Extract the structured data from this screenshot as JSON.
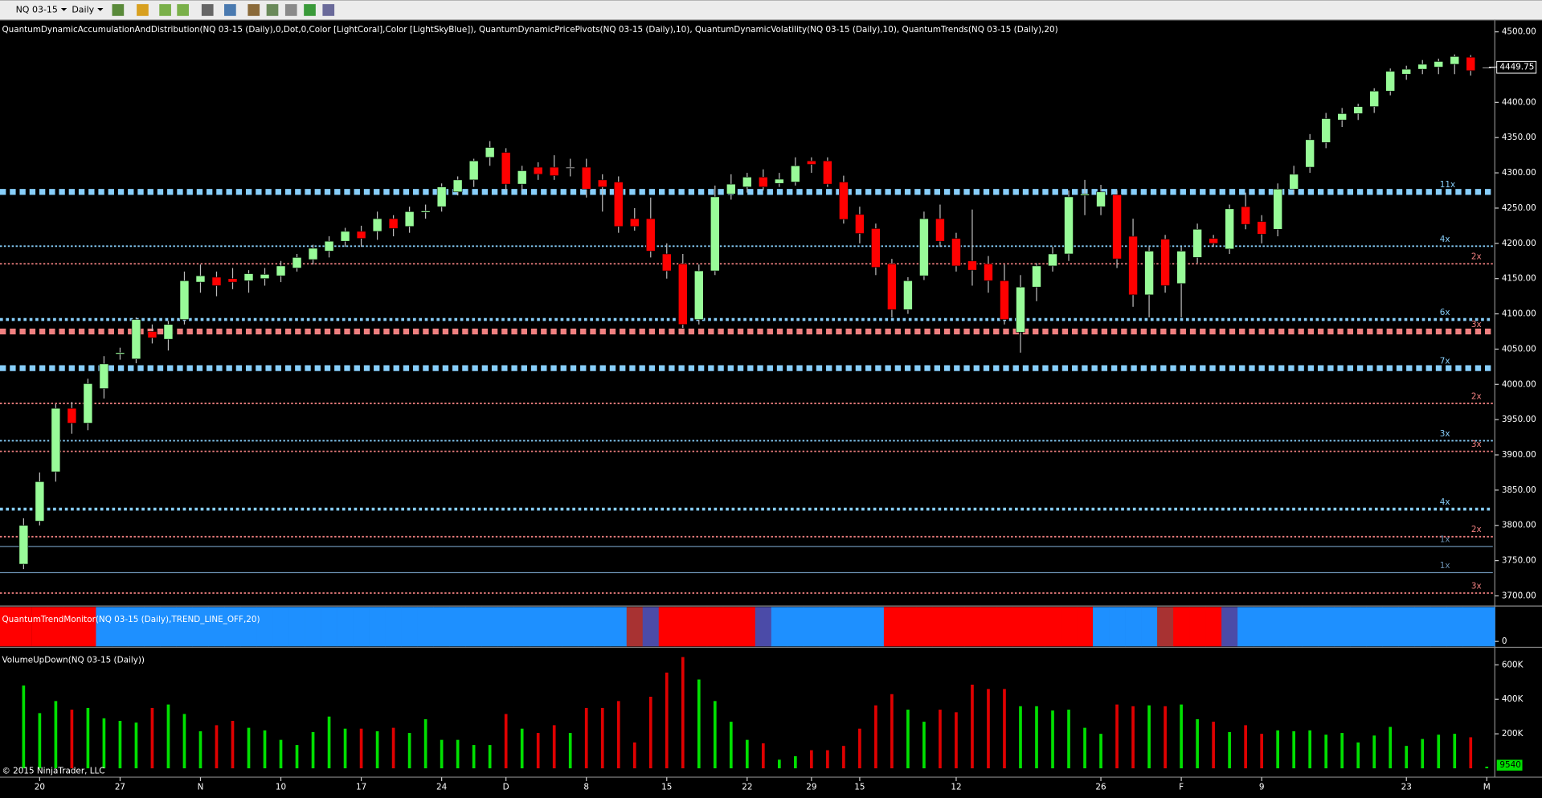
{
  "chart_data": {
    "type": "candlestick",
    "instrument": "NQ 03-15",
    "period": "Daily",
    "indicators_caption": "QuantumDynamicAccumulationAndDistribution(NQ 03-15 (Daily),0,Dot,0,Color [LightCoral],Color [LightSkyBlue]), QuantumDynamicPricePivots(NQ 03-15 (Daily),10), QuantumDynamicVolatility(NQ 03-15 (Daily),10), QuantumTrends(NQ 03-15 (Daily),20)",
    "trend_panel_title": "QuantumTrendMonitor(NQ 03-15 (Daily),TREND_LINE_OFF,20)",
    "volume_panel_title": "VolumeUpDown(NQ 03-15 (Daily))",
    "copyright": "© 2015 NinjaTrader, LLC",
    "categories": [
      null,
      "20",
      null,
      null,
      null,
      null,
      "27",
      null,
      null,
      null,
      null,
      "N",
      null,
      null,
      null,
      null,
      "10",
      null,
      null,
      null,
      null,
      "17",
      null,
      null,
      null,
      null,
      "24",
      null,
      null,
      null,
      "D",
      null,
      null,
      null,
      null,
      "8",
      null,
      null,
      null,
      null,
      "15",
      null,
      null,
      null,
      null,
      "22",
      null,
      null,
      null,
      "29",
      null,
      null,
      "15",
      null,
      null,
      null,
      null,
      null,
      "12",
      null,
      null,
      null,
      null,
      null,
      null,
      null,
      null,
      "26",
      null,
      null,
      null,
      null,
      "F",
      null,
      null,
      null,
      null,
      "9",
      null,
      null,
      null,
      null,
      null,
      null,
      null,
      null,
      "23",
      null,
      null,
      null,
      null,
      "M"
    ],
    "open": [
      3745,
      3806,
      3876,
      3966,
      3945,
      3994,
      4043,
      4036,
      4075,
      4064,
      4092,
      4145,
      4152,
      4150,
      4147,
      4150,
      4154,
      4165,
      4177,
      4189,
      4203,
      4217,
      4217,
      4235,
      4224,
      4244,
      4252,
      4273,
      4290,
      4322,
      4329,
      4284,
      4308,
      4308,
      4308,
      4308,
      4290,
      4287,
      4235,
      4235,
      4185,
      4171,
      4092,
      4161,
      4270,
      4280,
      4294,
      4285,
      4287,
      4317,
      4317,
      4287,
      4241,
      4221,
      4171,
      4106,
      4154,
      4235,
      4207,
      4175,
      4171,
      4147,
      4074,
      4138,
      4168,
      4185,
      4268,
      4252,
      4269,
      4210,
      4127,
      4206,
      4143,
      4180,
      4207,
      4192,
      4252,
      4231,
      4220,
      4277,
      4308,
      4343,
      4375,
      4384,
      4394,
      4416,
      4440,
      4447,
      4450,
      4454,
      4464,
      4449.75
    ],
    "high": [
      3810,
      3875,
      3972,
      3975,
      4008,
      4040,
      4052,
      4095,
      4085,
      4090,
      4160,
      4170,
      4160,
      4165,
      4162,
      4165,
      4175,
      4185,
      4198,
      4210,
      4222,
      4225,
      4245,
      4240,
      4252,
      4255,
      4285,
      4295,
      4320,
      4345,
      4335,
      4310,
      4315,
      4325,
      4320,
      4320,
      4298,
      4295,
      4250,
      4265,
      4200,
      4185,
      4170,
      4282,
      4298,
      4300,
      4305,
      4300,
      4322,
      4322,
      4322,
      4296,
      4252,
      4228,
      4178,
      4152,
      4245,
      4255,
      4215,
      4248,
      4182,
      4170,
      4155,
      4172,
      4195,
      4275,
      4290,
      4283,
      4275,
      4235,
      4195,
      4212,
      4195,
      4228,
      4212,
      4255,
      4272,
      4240,
      4285,
      4310,
      4355,
      4385,
      4392,
      4398,
      4420,
      4448,
      4452,
      4460,
      4462,
      4468,
      4467,
      4449.75
    ],
    "low": [
      3738,
      3800,
      3862,
      3930,
      3935,
      3980,
      4035,
      4030,
      4058,
      4048,
      4085,
      4130,
      4125,
      4135,
      4130,
      4140,
      4145,
      4160,
      4170,
      4180,
      4195,
      4195,
      4205,
      4210,
      4215,
      4235,
      4245,
      4268,
      4280,
      4310,
      4275,
      4275,
      4290,
      4290,
      4295,
      4265,
      4245,
      4215,
      4218,
      4180,
      4150,
      4080,
      4085,
      4155,
      4262,
      4272,
      4275,
      4280,
      4282,
      4300,
      4280,
      4228,
      4200,
      4155,
      4095,
      4100,
      4148,
      4195,
      4160,
      4140,
      4130,
      4085,
      4045,
      4118,
      4160,
      4175,
      4240,
      4240,
      4165,
      4110,
      4095,
      4130,
      4095,
      4172,
      4195,
      4185,
      4220,
      4200,
      4210,
      4270,
      4300,
      4335,
      4365,
      4375,
      4385,
      4410,
      4432,
      4440,
      4440,
      4440,
      4438,
      4449.75
    ],
    "close": [
      3800,
      3862,
      3966,
      3945,
      4001,
      4029,
      4045,
      4092,
      4066,
      4085,
      4147,
      4154,
      4140,
      4145,
      4157,
      4156,
      4168,
      4180,
      4193,
      4203,
      4217,
      4207,
      4235,
      4221,
      4245,
      4246,
      4280,
      4290,
      4317,
      4336,
      4284,
      4303,
      4298,
      4296,
      4308,
      4277,
      4280,
      4224,
      4224,
      4189,
      4161,
      4085,
      4161,
      4266,
      4284,
      4294,
      4280,
      4291,
      4310,
      4312,
      4284,
      4234,
      4214,
      4166,
      4106,
      4147,
      4235,
      4203,
      4168,
      4162,
      4147,
      4092,
      4138,
      4168,
      4185,
      4266,
      4270,
      4273,
      4178,
      4127,
      4189,
      4140,
      4189,
      4220,
      4200,
      4249,
      4227,
      4213,
      4277,
      4298,
      4347,
      4377,
      4384,
      4394,
      4416,
      4444,
      4447,
      4454,
      4458,
      4465,
      4445,
      4449.75
    ],
    "up_color": "#98fb98",
    "down_color": "#ff0000",
    "doji_color": "#c0c0c0",
    "ylim": [
      3687,
      4517
    ],
    "yticks": [
      {
        "value": 3700,
        "label": "3700.00"
      },
      {
        "value": 3750,
        "label": "3750.00"
      },
      {
        "value": 3800,
        "label": "3800.00"
      },
      {
        "value": 3850,
        "label": "3850.00"
      },
      {
        "value": 3900,
        "label": "3900.00"
      },
      {
        "value": 3950,
        "label": "3950.00"
      },
      {
        "value": 4000,
        "label": "4000.00"
      },
      {
        "value": 4050,
        "label": "4050.00"
      },
      {
        "value": 4100,
        "label": "4100.00"
      },
      {
        "value": 4150,
        "label": "4150.00"
      },
      {
        "value": 4200,
        "label": "4200.00"
      },
      {
        "value": 4250,
        "label": "4250.00"
      },
      {
        "value": 4300,
        "label": "4300.00"
      },
      {
        "value": 4350,
        "label": "4350.00"
      },
      {
        "value": 4400,
        "label": "4400.00"
      },
      {
        "value": 4450,
        "label": "4450.00"
      },
      {
        "value": 4500,
        "label": "4500.00"
      }
    ],
    "levels": [
      {
        "value": 4273,
        "label": "11x",
        "color": "#87cefa",
        "style": "heavy"
      },
      {
        "value": 4196,
        "label": "4x",
        "color": "#87cefa",
        "style": "dotted"
      },
      {
        "value": 4171,
        "label": "2x",
        "color": "#f08080",
        "style": "dotted"
      },
      {
        "value": 4092,
        "label": "6x",
        "color": "#87cefa",
        "style": "medium"
      },
      {
        "value": 4075,
        "label": "3x",
        "color": "#f08080",
        "style": "heavy"
      },
      {
        "value": 4023,
        "label": "7x",
        "color": "#87cefa",
        "style": "heavy"
      },
      {
        "value": 3973,
        "label": "2x",
        "color": "#f08080",
        "style": "dotted"
      },
      {
        "value": 3920,
        "label": "3x",
        "color": "#87cefa",
        "style": "dotted"
      },
      {
        "value": 3905,
        "label": "3x",
        "color": "#f08080",
        "style": "dotted"
      },
      {
        "value": 3823,
        "label": "4x",
        "color": "#87cefa",
        "style": "medium"
      },
      {
        "value": 3784,
        "label": "2x",
        "color": "#f08080",
        "style": "dotted"
      },
      {
        "value": 3770,
        "label": "1x",
        "color": "#6a8fb0",
        "style": "solid"
      },
      {
        "value": 3733,
        "label": "1x",
        "color": "#6a8fb0",
        "style": "solid"
      },
      {
        "value": 3704,
        "label": "3x",
        "color": "#f08080",
        "style": "dotted"
      }
    ],
    "trend_colors": [
      "#ff0000",
      "#ff0000",
      "#ff0000",
      "#ff0000",
      "#ff0000",
      "#1e90ff",
      "#1e90ff",
      "#1e90ff",
      "#1e90ff",
      "#1e90ff",
      "#1e90ff",
      "#1e90ff",
      "#1e90ff",
      "#1e90ff",
      "#1e90ff",
      "#1e90ff",
      "#1e90ff",
      "#1e90ff",
      "#1e90ff",
      "#1e90ff",
      "#1e90ff",
      "#1e90ff",
      "#1e90ff",
      "#1e90ff",
      "#1e90ff",
      "#1e90ff",
      "#1e90ff",
      "#1e90ff",
      "#1e90ff",
      "#1e90ff",
      "#1e90ff",
      "#1e90ff",
      "#1e90ff",
      "#1e90ff",
      "#1e90ff",
      "#1e90ff",
      "#1e90ff",
      "#1e90ff",
      "#a83232",
      "#4b4ba8",
      "#ff0000",
      "#ff0000",
      "#ff0000",
      "#ff0000",
      "#ff0000",
      "#ff0000",
      "#4b4ba8",
      "#1e90ff",
      "#1e90ff",
      "#1e90ff",
      "#1e90ff",
      "#1e90ff",
      "#1e90ff",
      "#1e90ff",
      "#ff0000",
      "#ff0000",
      "#ff0000",
      "#ff0000",
      "#ff0000",
      "#ff0000",
      "#ff0000",
      "#ff0000",
      "#ff0000",
      "#ff0000",
      "#ff0000",
      "#ff0000",
      "#ff0000",
      "#1e90ff",
      "#1e90ff",
      "#1e90ff",
      "#1e90ff",
      "#a83232",
      "#ff0000",
      "#ff0000",
      "#ff0000",
      "#4b4ba8",
      "#1e90ff",
      "#1e90ff",
      "#1e90ff",
      "#1e90ff",
      "#1e90ff",
      "#1e90ff",
      "#1e90ff",
      "#1e90ff",
      "#1e90ff",
      "#1e90ff",
      "#1e90ff",
      "#1e90ff",
      "#1e90ff",
      "#1e90ff",
      "#1e90ff",
      "#1e90ff"
    ],
    "trend_yticks": [
      0
    ],
    "volume": [
      480000,
      320000,
      390000,
      340000,
      350000,
      290000,
      275000,
      265000,
      350000,
      370000,
      315000,
      215000,
      250000,
      275000,
      235000,
      220000,
      165000,
      135000,
      210000,
      300000,
      230000,
      230000,
      215000,
      235000,
      205000,
      285000,
      165000,
      165000,
      135000,
      135000,
      315000,
      230000,
      205000,
      250000,
      205000,
      350000,
      350000,
      390000,
      150000,
      415000,
      555000,
      645000,
      515000,
      390000,
      270000,
      165000,
      145000,
      50000,
      70000,
      105000,
      105000,
      130000,
      230000,
      365000,
      430000,
      340000,
      270000,
      340000,
      325000,
      485000,
      460000,
      460000,
      360000,
      360000,
      335000,
      340000,
      235000,
      200000,
      370000,
      360000,
      365000,
      360000,
      370000,
      285000,
      270000,
      210000,
      250000,
      200000,
      220000,
      215000,
      220000,
      195000,
      205000,
      150000,
      190000,
      240000,
      130000,
      170000,
      195000,
      200000,
      180000,
      9540
    ],
    "volume_up_color": "#00e000",
    "volume_down_color": "#e00000",
    "volume_ylim": [
      0,
      690000
    ],
    "volume_yticks": [
      {
        "value": 200000,
        "label": "200K"
      },
      {
        "value": 400000,
        "label": "400K"
      },
      {
        "value": 600000,
        "label": "600K"
      }
    ]
  }
}
